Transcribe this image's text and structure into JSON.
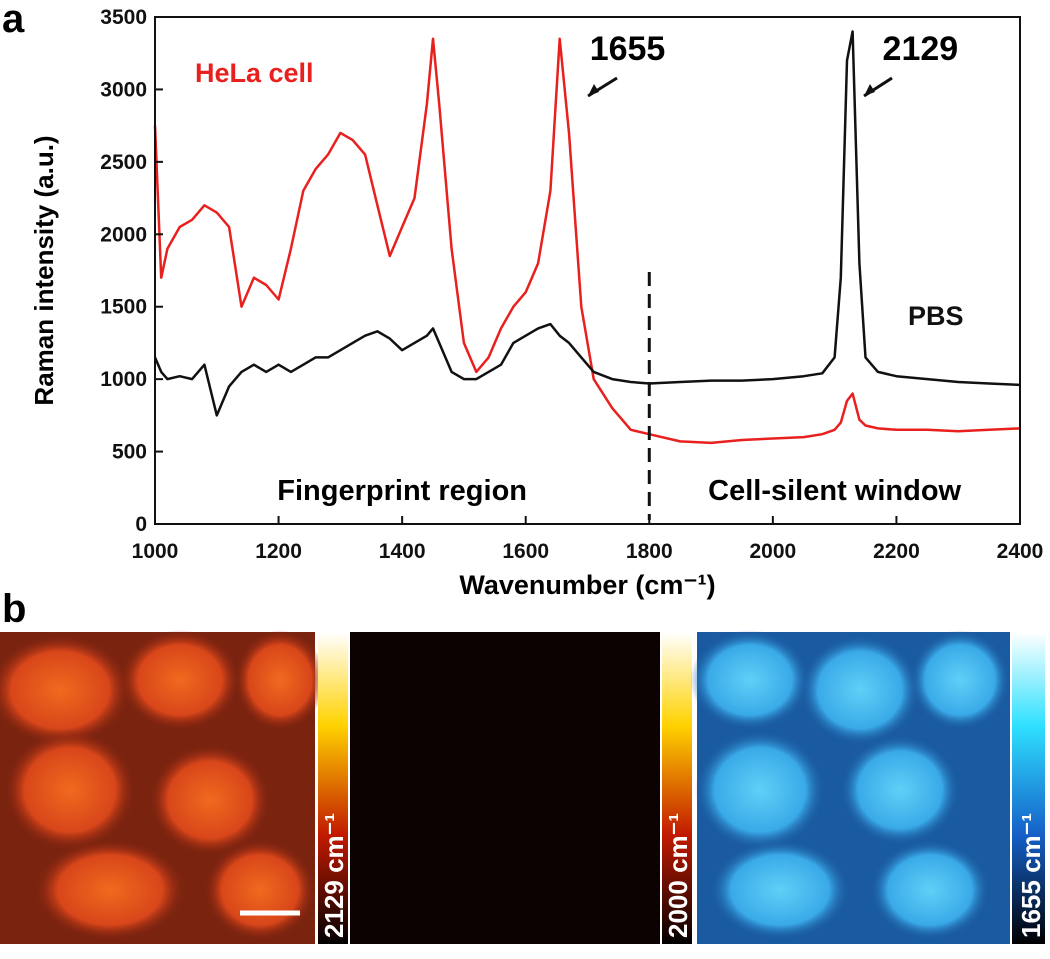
{
  "chart_data": {
    "type": "line",
    "panel_label": "a",
    "x_label": "Wavenumber (cm⁻¹)",
    "y_label": "Raman intensity (a.u.)",
    "x": [
      1000,
      1010,
      1020,
      1040,
      1060,
      1080,
      1100,
      1120,
      1140,
      1160,
      1180,
      1200,
      1220,
      1240,
      1260,
      1280,
      1300,
      1320,
      1340,
      1360,
      1380,
      1400,
      1420,
      1440,
      1450,
      1460,
      1480,
      1500,
      1520,
      1540,
      1560,
      1580,
      1600,
      1620,
      1640,
      1655,
      1670,
      1690,
      1710,
      1740,
      1770,
      1800,
      1850,
      1900,
      1950,
      2000,
      2050,
      2080,
      2100,
      2110,
      2120,
      2129,
      2140,
      2150,
      2170,
      2200,
      2250,
      2300,
      2350,
      2400
    ],
    "series": [
      {
        "name": "HeLa cell",
        "color": "#e8201e",
        "values": [
          2750,
          1700,
          1900,
          2050,
          2100,
          2200,
          2150,
          2050,
          1500,
          1700,
          1650,
          1550,
          1900,
          2300,
          2450,
          2550,
          2700,
          2650,
          2550,
          2200,
          1850,
          2050,
          2250,
          2900,
          3350,
          2900,
          1900,
          1250,
          1050,
          1150,
          1350,
          1500,
          1600,
          1800,
          2300,
          3350,
          2700,
          1500,
          1000,
          800,
          650,
          620,
          570,
          560,
          580,
          590,
          600,
          620,
          650,
          700,
          850,
          900,
          720,
          680,
          660,
          650,
          650,
          640,
          650,
          660
        ]
      },
      {
        "name": "PBS",
        "color": "#111111",
        "values": [
          1150,
          1050,
          1000,
          1020,
          1000,
          1100,
          750,
          950,
          1050,
          1100,
          1050,
          1100,
          1050,
          1100,
          1150,
          1150,
          1200,
          1250,
          1300,
          1330,
          1280,
          1200,
          1250,
          1300,
          1350,
          1250,
          1050,
          1000,
          1000,
          1050,
          1100,
          1250,
          1300,
          1350,
          1380,
          1300,
          1250,
          1150,
          1050,
          1000,
          980,
          970,
          980,
          990,
          990,
          1000,
          1020,
          1040,
          1150,
          1700,
          3200,
          3400,
          1800,
          1150,
          1050,
          1020,
          1000,
          980,
          970,
          960
        ]
      }
    ],
    "peak_labels": [
      {
        "x": 1655,
        "text": "1655"
      },
      {
        "x": 2129,
        "text": "2129"
      }
    ],
    "vline": 1800,
    "region_labels": [
      "Fingerprint region",
      "Cell-silent window"
    ],
    "xlim": [
      1000,
      2400
    ],
    "xticks": [
      1000,
      1200,
      1400,
      1600,
      1800,
      2000,
      2200,
      2400
    ],
    "ylim": [
      0,
      3500
    ],
    "yticks": [
      0,
      500,
      1000,
      1500,
      2000,
      2500,
      3000,
      3500
    ]
  },
  "panel_b": {
    "panel_label": "b",
    "colorbars": [
      "2129 cm⁻¹",
      "2000 cm⁻¹",
      "1655 cm⁻¹"
    ]
  }
}
